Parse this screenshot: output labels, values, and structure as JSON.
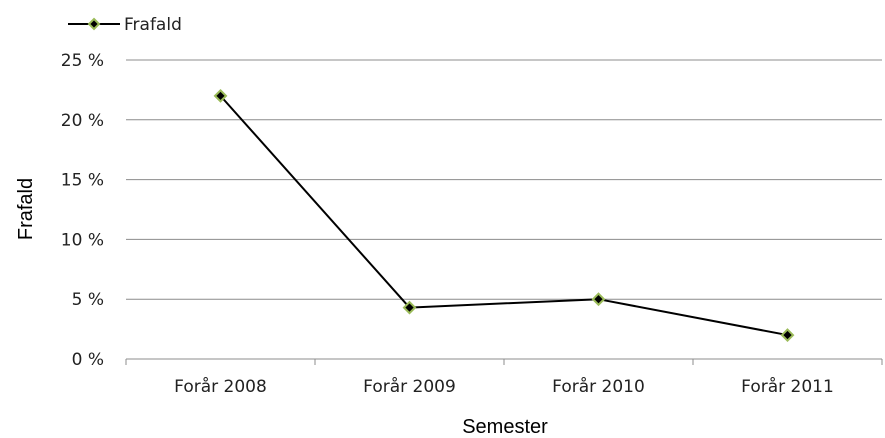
{
  "chart_data": {
    "type": "line",
    "categories": [
      "Forår 2008",
      "Forår 2009",
      "Forår 2010",
      "Forår 2011"
    ],
    "series": [
      {
        "name": "Frafald",
        "values": [
          22,
          4.3,
          5,
          2
        ]
      }
    ],
    "y_ticks": [
      "0 %",
      "5 %",
      "10 %",
      "15 %",
      "20 %",
      "25 %"
    ],
    "xlabel": "Semester",
    "ylabel": "Frafald",
    "ylim": [
      0,
      25
    ],
    "y_unit": "%",
    "grid": true,
    "legend_position": "top-left",
    "colors": {
      "line": "#000000",
      "marker_fill": "#000000",
      "marker_stroke": "#9BBB59",
      "grid": "#8c8c8c"
    }
  }
}
